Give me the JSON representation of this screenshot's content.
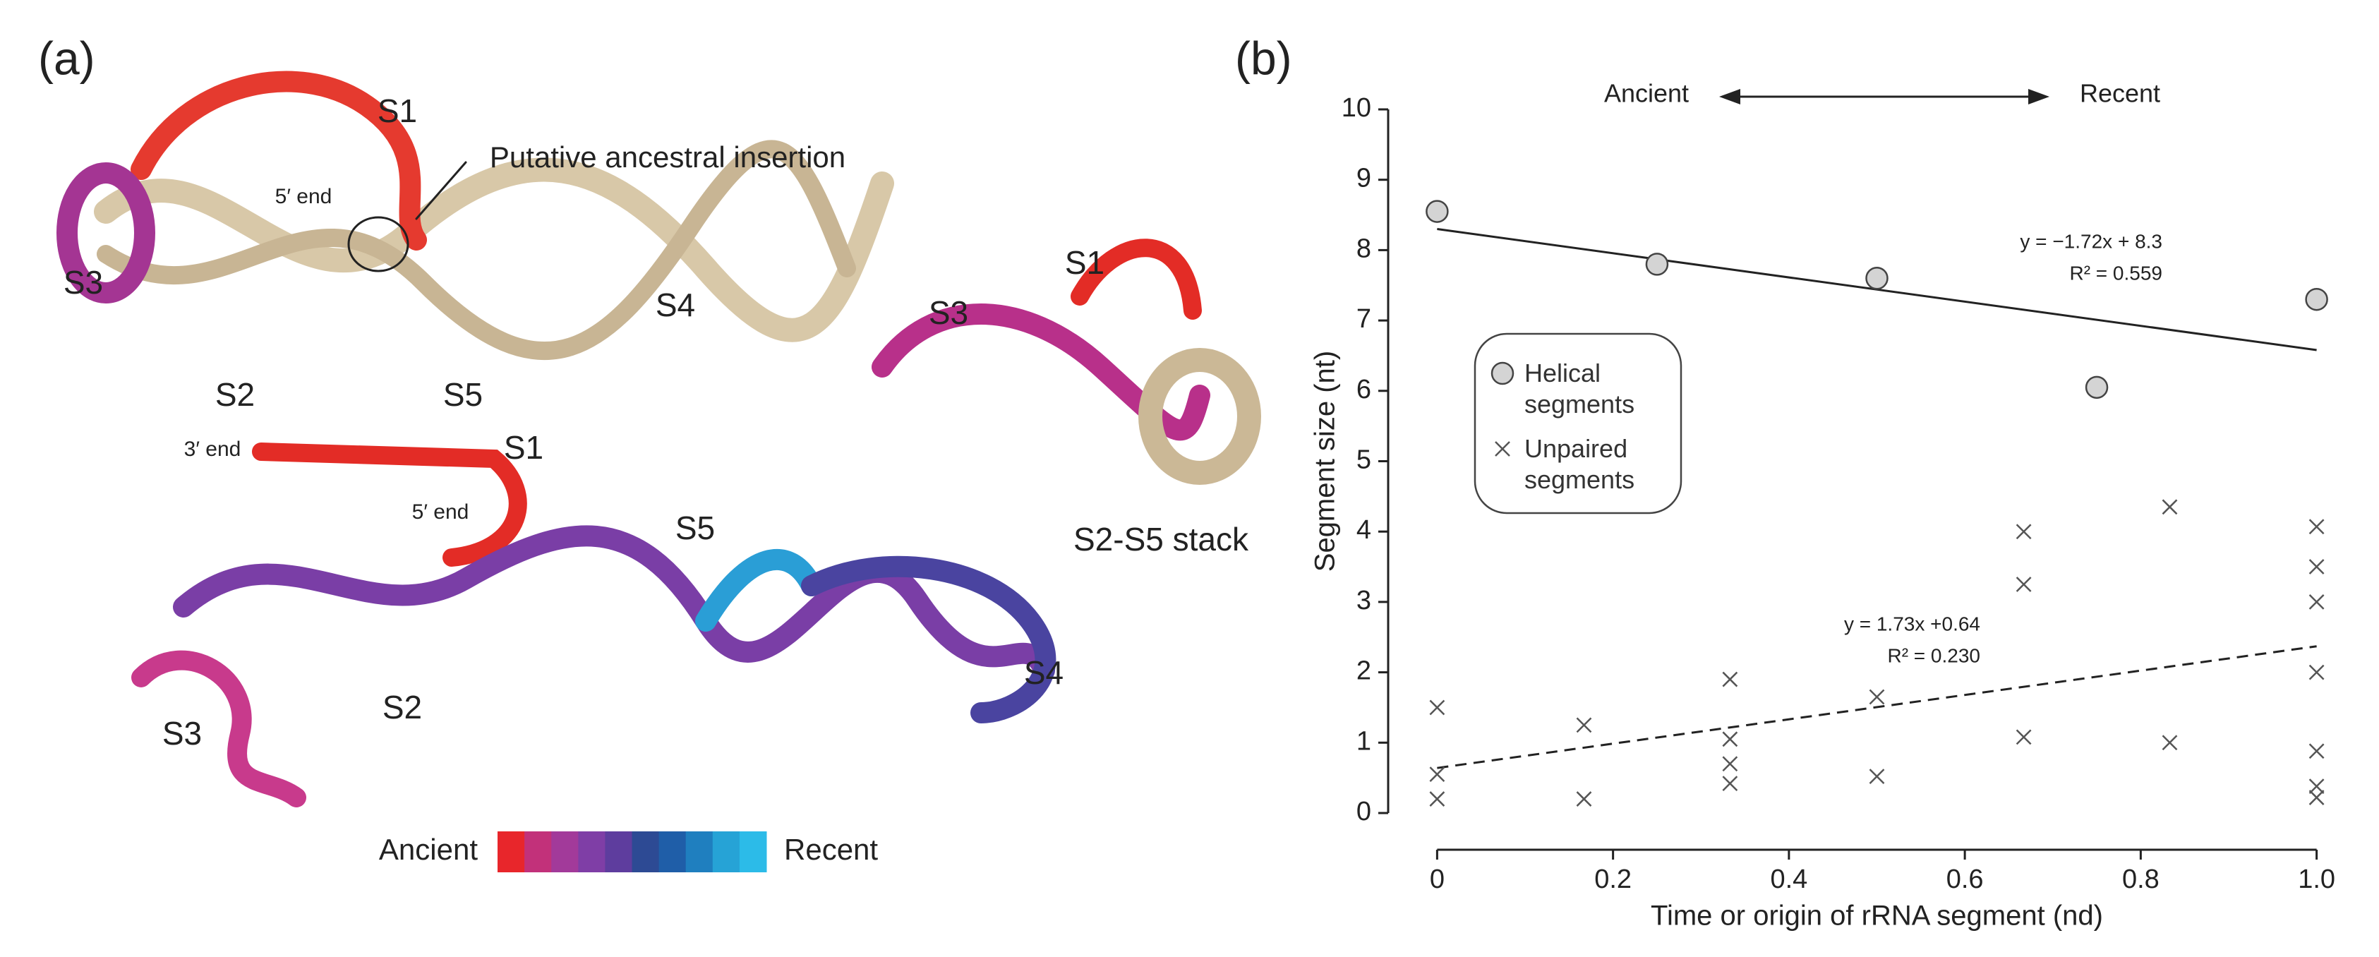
{
  "panel_a": {
    "panel_label": "(a)",
    "labels": [
      "S1",
      "Putative ancestral insertion",
      "5′ end",
      "S3",
      "S2",
      "S5",
      "S4",
      "S1",
      "S3",
      "S2-S5 stack",
      "3′ end",
      "S1",
      "5′ end",
      "S5",
      "S2",
      "S3",
      "S4"
    ],
    "scale_start": "Ancient",
    "scale_end": "Recent",
    "scale_colors": [
      "#e8262b",
      "#c2317a",
      "#a23a9a",
      "#7f3ea6",
      "#5e3d9e",
      "#2d4a94",
      "#1f5ea8",
      "#1f7fbf",
      "#26a3d6",
      "#2cbbe8"
    ]
  },
  "chart_data": {
    "type": "scatter",
    "panel_label": "(b)",
    "xlabel": "Time or origin of rRNA segment (nd)",
    "ylabel": "Segment size (nt)",
    "xlim": [
      -0.03,
      1.03
    ],
    "ylim": [
      0,
      10
    ],
    "xticks": [
      0,
      0.2,
      0.4,
      0.6,
      0.8,
      {
        "value": 1,
        "label": "1.0"
      }
    ],
    "yticks": [
      0,
      1,
      2,
      3,
      4,
      5,
      6,
      7,
      8,
      9,
      10
    ],
    "annotation_left": "Ancient",
    "annotation_right": "Recent",
    "series": [
      {
        "name": "Helical segments",
        "marker": "circle",
        "color": "#d4d4d4",
        "x": [
          0,
          0.25,
          0.5,
          0.75,
          1
        ],
        "values": [
          8.55,
          7.8,
          7.6,
          6.05,
          7.3
        ]
      },
      {
        "name": "Unpaired segments",
        "marker": "x",
        "color": "#555555",
        "x": [
          0,
          0,
          0,
          0.167,
          0.167,
          0.333,
          0.333,
          0.333,
          0.333,
          0.5,
          0.5,
          0.667,
          0.667,
          0.667,
          0.833,
          0.833,
          1,
          1,
          1,
          1,
          1,
          1,
          1
        ],
        "values": [
          1.5,
          0.55,
          0.2,
          1.25,
          0.2,
          1.9,
          1.05,
          0.7,
          0.42,
          1.65,
          0.52,
          4.0,
          3.25,
          1.08,
          4.35,
          1.0,
          4.07,
          3.5,
          3.0,
          2.0,
          0.88,
          0.38,
          0.22
        ]
      }
    ],
    "trendlines": [
      {
        "slope": -1.72,
        "intercept": 8.3,
        "dashed": false,
        "label": "y = −1.72x + 8.3",
        "r2_label": "R² = 0.559"
      },
      {
        "slope": 1.73,
        "intercept": 0.64,
        "dashed": true,
        "label": "y = 1.73x +0.64",
        "r2_label": "R² = 0.230"
      }
    ]
  }
}
